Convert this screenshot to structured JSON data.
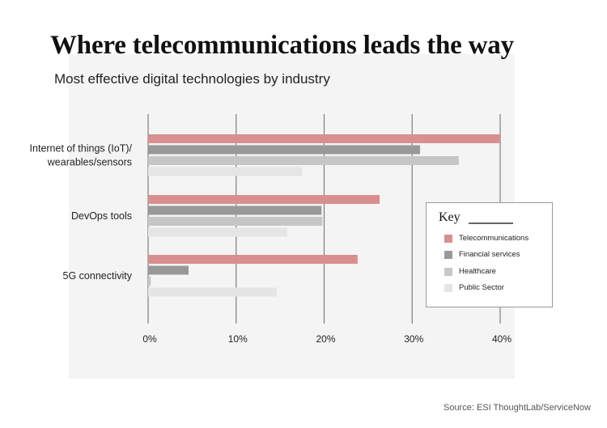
{
  "title": "Where telecommunications leads the way",
  "subtitle": "Most effective digital technologies by industry",
  "source": "Source: ESI ThoughtLab/ServiceNow",
  "legend": {
    "title": "Key",
    "placement": "right"
  },
  "colors": {
    "panel_background": "#f4f4f4",
    "gridline": "#7f7f7f"
  },
  "chart_data": {
    "type": "bar",
    "orientation": "horizontal",
    "categories": [
      "Internet of things (IoT)/ wearables/sensors",
      "DevOps tools",
      "5G connectivity"
    ],
    "category_lines": [
      [
        "Internet of things (IoT)/",
        "wearables/sensors"
      ],
      [
        "DevOps tools"
      ],
      [
        "5G connectivity"
      ]
    ],
    "series": [
      {
        "name": "Telecommunications",
        "color": "#d98f8f",
        "values": [
          40.0,
          26.3,
          23.8
        ]
      },
      {
        "name": "Financial services",
        "color": "#999999",
        "values": [
          30.9,
          19.7,
          4.6
        ]
      },
      {
        "name": "Healthcare",
        "color": "#c6c6c6",
        "values": [
          35.3,
          19.8,
          0.3
        ]
      },
      {
        "name": "Public Sector",
        "color": "#e5e5e5",
        "values": [
          17.5,
          15.8,
          14.6
        ]
      }
    ],
    "xlim": [
      0,
      40
    ],
    "xticks": [
      0,
      10,
      20,
      30,
      40
    ],
    "xtick_labels": [
      "0%",
      "10%",
      "20%",
      "30%",
      "40%"
    ],
    "grid": true,
    "xlabel": "",
    "ylabel": ""
  }
}
